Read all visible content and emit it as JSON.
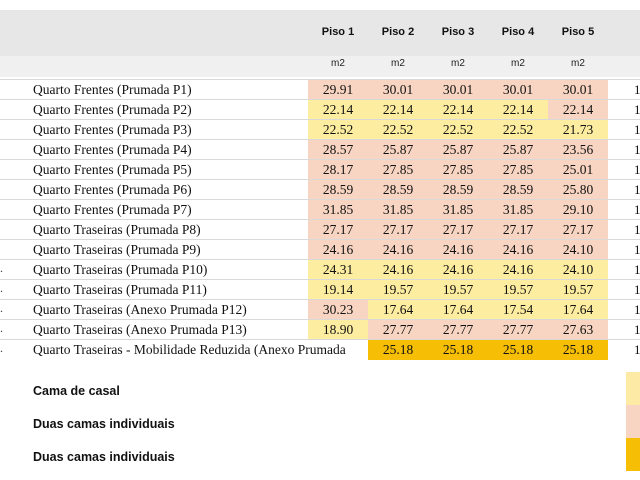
{
  "colors": {
    "header_bg": "#e7e7e7",
    "pink": "#f8d5c2",
    "yellow": "#fdeda0",
    "orange": "#f7be06",
    "legend_yellow": "#fdeaa5",
    "legend_pink": "#f8d5c2",
    "legend_orange": "#f7be06"
  },
  "columns": [
    "Piso 1",
    "Piso 2",
    "Piso 3",
    "Piso 4",
    "Piso 5"
  ],
  "unit_label": "m2",
  "rows": [
    {
      "dot": "",
      "label": "Quarto Frentes (Prumada P1)",
      "values": [
        "29.91",
        "30.01",
        "30.01",
        "30.01",
        "30.01"
      ],
      "colors": [
        "pink",
        "pink",
        "pink",
        "pink",
        "pink"
      ],
      "edge": "1"
    },
    {
      "dot": "",
      "label": "Quarto Frentes (Prumada P2)",
      "values": [
        "22.14",
        "22.14",
        "22.14",
        "22.14",
        "22.14"
      ],
      "colors": [
        "yellow",
        "yellow",
        "yellow",
        "yellow",
        "pink"
      ],
      "edge": "1"
    },
    {
      "dot": "",
      "label": "Quarto Frentes (Prumada P3)",
      "values": [
        "22.52",
        "22.52",
        "22.52",
        "22.52",
        "21.73"
      ],
      "colors": [
        "yellow",
        "yellow",
        "yellow",
        "yellow",
        "yellow"
      ],
      "edge": "1"
    },
    {
      "dot": "",
      "label": "Quarto Frentes (Prumada P4)",
      "values": [
        "28.57",
        "25.87",
        "25.87",
        "25.87",
        "23.56"
      ],
      "colors": [
        "pink",
        "pink",
        "pink",
        "pink",
        "pink"
      ],
      "edge": "1"
    },
    {
      "dot": "",
      "label": "Quarto Frentes (Prumada P5)",
      "values": [
        "28.17",
        "27.85",
        "27.85",
        "27.85",
        "25.01"
      ],
      "colors": [
        "pink",
        "pink",
        "pink",
        "pink",
        "pink"
      ],
      "edge": "1"
    },
    {
      "dot": "",
      "label": "Quarto Frentes (Prumada P6)",
      "values": [
        "28.59",
        "28.59",
        "28.59",
        "28.59",
        "25.80"
      ],
      "colors": [
        "pink",
        "pink",
        "pink",
        "pink",
        "pink"
      ],
      "edge": "1"
    },
    {
      "dot": "",
      "label": "Quarto Frentes (Prumada P7)",
      "values": [
        "31.85",
        "31.85",
        "31.85",
        "31.85",
        "29.10"
      ],
      "colors": [
        "pink",
        "pink",
        "pink",
        "pink",
        "pink"
      ],
      "edge": "1"
    },
    {
      "dot": "",
      "label": "Quarto Traseiras (Prumada P8)",
      "values": [
        "27.17",
        "27.17",
        "27.17",
        "27.17",
        "27.17"
      ],
      "colors": [
        "pink",
        "pink",
        "pink",
        "pink",
        "pink"
      ],
      "edge": "1"
    },
    {
      "dot": "",
      "label": "Quarto Traseiras (Prumada P9)",
      "values": [
        "24.16",
        "24.16",
        "24.16",
        "24.16",
        "24.10"
      ],
      "colors": [
        "pink",
        "pink",
        "pink",
        "pink",
        "pink"
      ],
      "edge": "1"
    },
    {
      "dot": ".",
      "label": "Quarto Traseiras (Prumada P10)",
      "values": [
        "24.31",
        "24.16",
        "24.16",
        "24.16",
        "24.10"
      ],
      "colors": [
        "yellow",
        "yellow",
        "yellow",
        "yellow",
        "yellow"
      ],
      "edge": "1"
    },
    {
      "dot": ".",
      "label": "Quarto Traseiras (Prumada P11)",
      "values": [
        "19.14",
        "19.57",
        "19.57",
        "19.57",
        "19.57"
      ],
      "colors": [
        "yellow",
        "yellow",
        "yellow",
        "yellow",
        "yellow"
      ],
      "edge": "1"
    },
    {
      "dot": ".",
      "label": "Quarto Traseiras (Anexo Prumada P12)",
      "values": [
        "30.23",
        "17.64",
        "17.64",
        "17.54",
        "17.64"
      ],
      "colors": [
        "pink",
        "yellow",
        "yellow",
        "yellow",
        "yellow"
      ],
      "edge": "1"
    },
    {
      "dot": ".",
      "label": "Quarto Traseiras (Anexo Prumada P13)",
      "values": [
        "18.90",
        "27.77",
        "27.77",
        "27.77",
        "27.63"
      ],
      "colors": [
        "yellow",
        "pink",
        "pink",
        "pink",
        "pink"
      ],
      "edge": "1"
    },
    {
      "dot": ".",
      "label": "Quarto Traseiras - Mobilidade Reduzida (Anexo Prumada",
      "values": [
        "",
        "25.18",
        "25.18",
        "25.18",
        "25.18"
      ],
      "colors": [
        "none",
        "orange",
        "orange",
        "orange",
        "orange"
      ],
      "edge": "1"
    }
  ],
  "legend": [
    {
      "label": "Cama de casal",
      "color": "legend_yellow"
    },
    {
      "label": "Duas camas individuais",
      "color": "legend_pink"
    },
    {
      "label": "Duas camas individuais",
      "color": "legend_orange"
    }
  ]
}
